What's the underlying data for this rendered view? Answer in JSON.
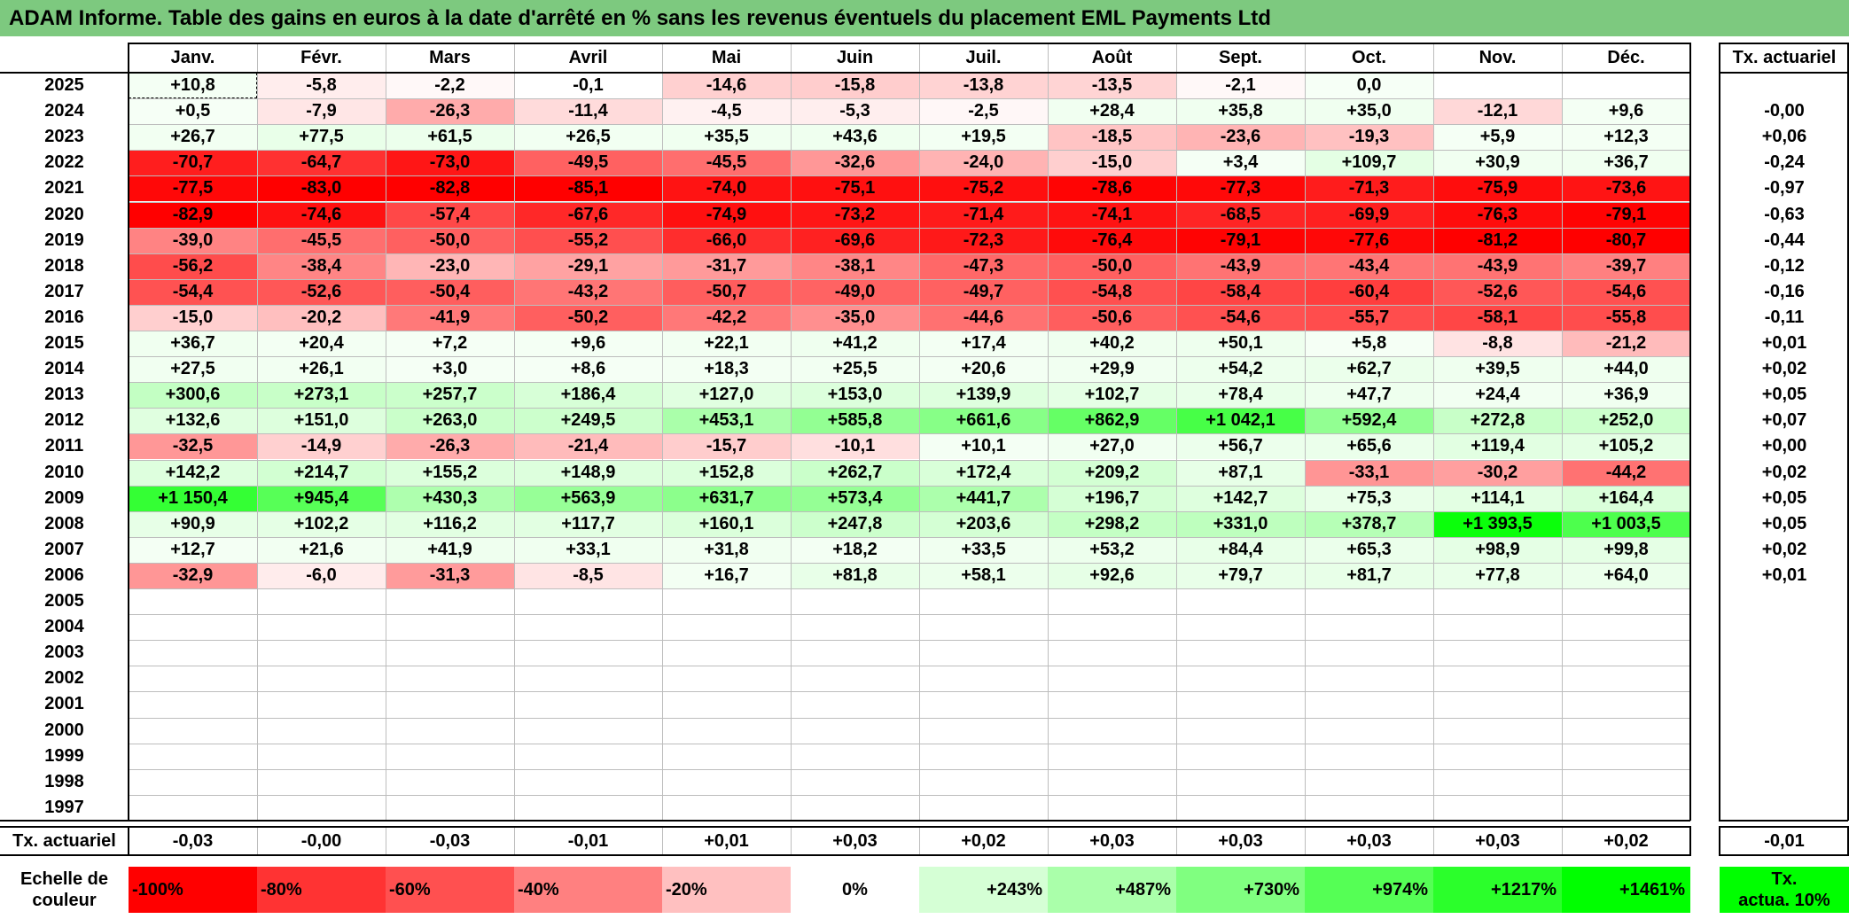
{
  "title": "ADAM Informe. Table des gains en euros à la date d'arrêté en % sans les revenus éventuels du placement EML Payments Ltd",
  "chart_data": {
    "type": "heatmap",
    "title": "ADAM Informe. Table des gains en euros à la date d'arrêté en % sans les revenus éventuels du placement EML Payments Ltd",
    "months": [
      "Janv.",
      "Févr.",
      "Mars",
      "Avril",
      "Mai",
      "Juin",
      "Juil.",
      "Août",
      "Sept.",
      "Oct.",
      "Nov.",
      "Déc."
    ],
    "rate_header": "Tx. actuariel",
    "rows": [
      {
        "year": "2025",
        "values": [
          "+10,8",
          "-5,8",
          "-2,2",
          "-0,1",
          "-14,6",
          "-15,8",
          "-13,8",
          "-13,5",
          "-2,1",
          "0,0",
          "",
          ""
        ],
        "rate": ""
      },
      {
        "year": "2024",
        "values": [
          "+0,5",
          "-7,9",
          "-26,3",
          "-11,4",
          "-4,5",
          "-5,3",
          "-2,5",
          "+28,4",
          "+35,8",
          "+35,0",
          "-12,1",
          "+9,6"
        ],
        "rate": "-0,00"
      },
      {
        "year": "2023",
        "values": [
          "+26,7",
          "+77,5",
          "+61,5",
          "+26,5",
          "+35,5",
          "+43,6",
          "+19,5",
          "-18,5",
          "-23,6",
          "-19,3",
          "+5,9",
          "+12,3"
        ],
        "rate": "+0,06"
      },
      {
        "year": "2022",
        "values": [
          "-70,7",
          "-64,7",
          "-73,0",
          "-49,5",
          "-45,5",
          "-32,6",
          "-24,0",
          "-15,0",
          "+3,4",
          "+109,7",
          "+30,9",
          "+36,7"
        ],
        "rate": "-0,24"
      },
      {
        "year": "2021",
        "values": [
          "-77,5",
          "-83,0",
          "-82,8",
          "-85,1",
          "-74,0",
          "-75,1",
          "-75,2",
          "-78,6",
          "-77,3",
          "-71,3",
          "-75,9",
          "-73,6"
        ],
        "rate": "-0,97"
      },
      {
        "year": "2020",
        "values": [
          "-82,9",
          "-74,6",
          "-57,4",
          "-67,6",
          "-74,9",
          "-73,2",
          "-71,4",
          "-74,1",
          "-68,5",
          "-69,9",
          "-76,3",
          "-79,1"
        ],
        "rate": "-0,63"
      },
      {
        "year": "2019",
        "values": [
          "-39,0",
          "-45,5",
          "-50,0",
          "-55,2",
          "-66,0",
          "-69,6",
          "-72,3",
          "-76,4",
          "-79,1",
          "-77,6",
          "-81,2",
          "-80,7"
        ],
        "rate": "-0,44"
      },
      {
        "year": "2018",
        "values": [
          "-56,2",
          "-38,4",
          "-23,0",
          "-29,1",
          "-31,7",
          "-38,1",
          "-47,3",
          "-50,0",
          "-43,9",
          "-43,4",
          "-43,9",
          "-39,7"
        ],
        "rate": "-0,12"
      },
      {
        "year": "2017",
        "values": [
          "-54,4",
          "-52,6",
          "-50,4",
          "-43,2",
          "-50,7",
          "-49,0",
          "-49,7",
          "-54,8",
          "-58,4",
          "-60,4",
          "-52,6",
          "-54,6"
        ],
        "rate": "-0,16"
      },
      {
        "year": "2016",
        "values": [
          "-15,0",
          "-20,2",
          "-41,9",
          "-50,2",
          "-42,2",
          "-35,0",
          "-44,6",
          "-50,6",
          "-54,6",
          "-55,7",
          "-58,1",
          "-55,8"
        ],
        "rate": "-0,11"
      },
      {
        "year": "2015",
        "values": [
          "+36,7",
          "+20,4",
          "+7,2",
          "+9,6",
          "+22,1",
          "+41,2",
          "+17,4",
          "+40,2",
          "+50,1",
          "+5,8",
          "-8,8",
          "-21,2"
        ],
        "rate": "+0,01"
      },
      {
        "year": "2014",
        "values": [
          "+27,5",
          "+26,1",
          "+3,0",
          "+8,6",
          "+18,3",
          "+25,5",
          "+20,6",
          "+29,9",
          "+54,2",
          "+62,7",
          "+39,5",
          "+44,0"
        ],
        "rate": "+0,02"
      },
      {
        "year": "2013",
        "values": [
          "+300,6",
          "+273,1",
          "+257,7",
          "+186,4",
          "+127,0",
          "+153,0",
          "+139,9",
          "+102,7",
          "+78,4",
          "+47,7",
          "+24,4",
          "+36,9"
        ],
        "rate": "+0,05"
      },
      {
        "year": "2012",
        "values": [
          "+132,6",
          "+151,0",
          "+263,0",
          "+249,5",
          "+453,1",
          "+585,8",
          "+661,6",
          "+862,9",
          "+1 042,1",
          "+592,4",
          "+272,8",
          "+252,0"
        ],
        "rate": "+0,07"
      },
      {
        "year": "2011",
        "values": [
          "-32,5",
          "-14,9",
          "-26,3",
          "-21,4",
          "-15,7",
          "-10,1",
          "+10,1",
          "+27,0",
          "+56,7",
          "+65,6",
          "+119,4",
          "+105,2"
        ],
        "rate": "+0,00"
      },
      {
        "year": "2010",
        "values": [
          "+142,2",
          "+214,7",
          "+155,2",
          "+148,9",
          "+152,8",
          "+262,7",
          "+172,4",
          "+209,2",
          "+87,1",
          "-33,1",
          "-30,2",
          "-44,2"
        ],
        "rate": "+0,02"
      },
      {
        "year": "2009",
        "values": [
          "+1 150,4",
          "+945,4",
          "+430,3",
          "+563,9",
          "+631,7",
          "+573,4",
          "+441,7",
          "+196,7",
          "+142,7",
          "+75,3",
          "+114,1",
          "+164,4"
        ],
        "rate": "+0,05"
      },
      {
        "year": "2008",
        "values": [
          "+90,9",
          "+102,2",
          "+116,2",
          "+117,7",
          "+160,1",
          "+247,8",
          "+203,6",
          "+298,2",
          "+331,0",
          "+378,7",
          "+1 393,5",
          "+1 003,5"
        ],
        "rate": "+0,05"
      },
      {
        "year": "2007",
        "values": [
          "+12,7",
          "+21,6",
          "+41,9",
          "+33,1",
          "+31,8",
          "+18,2",
          "+33,5",
          "+53,2",
          "+84,4",
          "+65,3",
          "+98,9",
          "+99,8"
        ],
        "rate": "+0,02"
      },
      {
        "year": "2006",
        "values": [
          "-32,9",
          "-6,0",
          "-31,3",
          "-8,5",
          "+16,7",
          "+81,8",
          "+58,1",
          "+92,6",
          "+79,7",
          "+81,7",
          "+77,8",
          "+64,0"
        ],
        "rate": "+0,01"
      },
      {
        "year": "2005",
        "values": [
          "",
          "",
          "",
          "",
          "",
          "",
          "",
          "",
          "",
          "",
          "",
          ""
        ],
        "rate": ""
      },
      {
        "year": "2004",
        "values": [
          "",
          "",
          "",
          "",
          "",
          "",
          "",
          "",
          "",
          "",
          "",
          ""
        ],
        "rate": ""
      },
      {
        "year": "2003",
        "values": [
          "",
          "",
          "",
          "",
          "",
          "",
          "",
          "",
          "",
          "",
          "",
          ""
        ],
        "rate": ""
      },
      {
        "year": "2002",
        "values": [
          "",
          "",
          "",
          "",
          "",
          "",
          "",
          "",
          "",
          "",
          "",
          ""
        ],
        "rate": ""
      },
      {
        "year": "2001",
        "values": [
          "",
          "",
          "",
          "",
          "",
          "",
          "",
          "",
          "",
          "",
          "",
          ""
        ],
        "rate": ""
      },
      {
        "year": "2000",
        "values": [
          "",
          "",
          "",
          "",
          "",
          "",
          "",
          "",
          "",
          "",
          "",
          ""
        ],
        "rate": ""
      },
      {
        "year": "1999",
        "values": [
          "",
          "",
          "",
          "",
          "",
          "",
          "",
          "",
          "",
          "",
          "",
          ""
        ],
        "rate": ""
      },
      {
        "year": "1998",
        "values": [
          "",
          "",
          "",
          "",
          "",
          "",
          "",
          "",
          "",
          "",
          "",
          ""
        ],
        "rate": ""
      },
      {
        "year": "1997",
        "values": [
          "",
          "",
          "",
          "",
          "",
          "",
          "",
          "",
          "",
          "",
          "",
          ""
        ],
        "rate": ""
      }
    ],
    "footer": {
      "label": "Tx. actuariel",
      "values": [
        "-0,03",
        "-0,00",
        "-0,03",
        "-0,01",
        "+0,01",
        "+0,03",
        "+0,02",
        "+0,03",
        "+0,03",
        "+0,03",
        "+0,03",
        "+0,02"
      ],
      "rate": "-0,01"
    },
    "scale": {
      "label_line1": "Echelle de",
      "label_line2": "couleur",
      "items": [
        {
          "label": "-100%",
          "value": -100,
          "color": "#ff0000"
        },
        {
          "label": "-80%",
          "value": -80,
          "color": "#ff3333"
        },
        {
          "label": "-60%",
          "value": -60,
          "color": "#ff5050"
        },
        {
          "label": "-40%",
          "value": -40,
          "color": "#ff8080"
        },
        {
          "label": "-20%",
          "value": -20,
          "color": "#ffc0c0"
        },
        {
          "label": "0%",
          "value": 0,
          "color": "#ffffff"
        },
        {
          "label": "+243%",
          "value": 243,
          "color": "#d5ffd5"
        },
        {
          "label": "+487%",
          "value": 487,
          "color": "#aaffaa"
        },
        {
          "label": "+730%",
          "value": 730,
          "color": "#80ff80"
        },
        {
          "label": "+974%",
          "value": 974,
          "color": "#55ff55"
        },
        {
          "label": "+1217%",
          "value": 1217,
          "color": "#2bff2b"
        },
        {
          "label": "+1461%",
          "value": 1461,
          "color": "#00ff00"
        }
      ],
      "rate_line1": "Tx.",
      "rate_line2": "actua. 10%",
      "rate_color": "#00ff00"
    }
  }
}
